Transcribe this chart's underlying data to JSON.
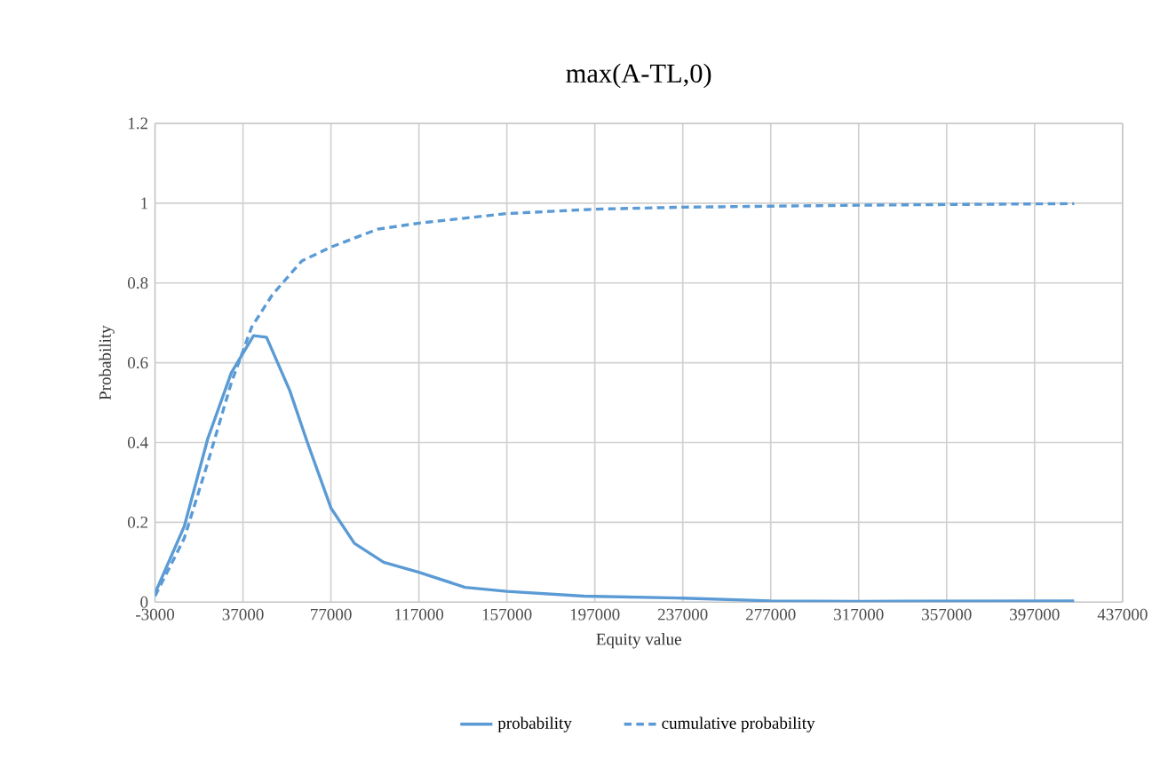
{
  "chart_data": {
    "type": "line",
    "title": "max(A-TL,0)",
    "xlabel": "Equity value",
    "ylabel": "Probability",
    "xlim": [
      -3000,
      437000
    ],
    "xticks": [
      -3000,
      37000,
      77000,
      117000,
      157000,
      197000,
      237000,
      277000,
      317000,
      357000,
      397000,
      437000
    ],
    "ylim": [
      0,
      1.2
    ],
    "yticks": [
      0,
      0.2,
      0.4,
      0.6,
      0.8,
      1,
      1.2
    ],
    "grid": true,
    "legend": "bottom",
    "marker": "none",
    "series": [
      {
        "name": "probability",
        "color": "#5b9bd5",
        "line_style": "solid",
        "x": [
          -3000,
          10300,
          21000,
          31700,
          41800,
          47700,
          58300,
          66300,
          77000,
          87700,
          101000,
          117000,
          138000,
          157000,
          192000,
          237000,
          277000,
          317000,
          415000
        ],
        "values": [
          0.022,
          0.19,
          0.41,
          0.575,
          0.668,
          0.664,
          0.53,
          0.4,
          0.236,
          0.147,
          0.1,
          0.075,
          0.037,
          0.027,
          0.015,
          0.01,
          0.003,
          0.002,
          0.003
        ]
      },
      {
        "name": "cumulative probability",
        "color": "#5b9bd5",
        "line_style": "dashed",
        "x": [
          -3000,
          10300,
          21000,
          31700,
          41000,
          50300,
          63700,
          77000,
          98300,
          117000,
          157000,
          197000,
          237000,
          317000,
          415000
        ],
        "values": [
          0.015,
          0.16,
          0.35,
          0.55,
          0.69,
          0.77,
          0.855,
          0.89,
          0.935,
          0.95,
          0.974,
          0.985,
          0.99,
          0.995,
          0.999
        ]
      }
    ]
  }
}
